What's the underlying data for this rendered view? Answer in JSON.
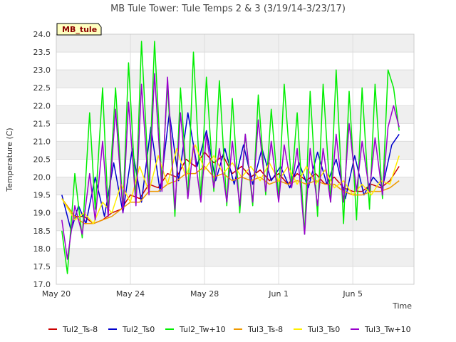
{
  "chart_data": {
    "type": "line",
    "title": "MB Tule Tower: Tule Temps 2 & 3 (3/19/14-3/23/17)",
    "xlabel": "Time",
    "ylabel": "Temperature (C)",
    "ylim": [
      17.0,
      24.0
    ],
    "yticks": [
      17.0,
      17.5,
      18.0,
      18.5,
      19.0,
      19.5,
      20.0,
      20.5,
      21.0,
      21.5,
      22.0,
      22.5,
      23.0,
      23.5,
      24.0
    ],
    "ytick_labels": [
      "17.0",
      "17.5",
      "18.0",
      "18.5",
      "19.0",
      "19.5",
      "20.0",
      "20.5",
      "21.0",
      "21.5",
      "22.0",
      "22.5",
      "23.0",
      "23.5",
      "24.0"
    ],
    "xlim": [
      0,
      19.3
    ],
    "xticks": [
      0,
      4,
      8,
      12,
      16
    ],
    "xtick_labels": [
      "May 20",
      "May 24",
      "May 28",
      "Jun 1",
      "Jun 5"
    ],
    "grid": true,
    "band_fill": "#efefef",
    "station_tag": "MB_tule",
    "legend_position": "bottom",
    "series": [
      {
        "name": "Tul2_Ts-8",
        "color": "#cc0000",
        "x": [
          0.3,
          1.0,
          1.5,
          2.0,
          2.5,
          3.0,
          3.5,
          4.0,
          4.5,
          5.0,
          5.5,
          6.0,
          6.5,
          7.0,
          7.5,
          8.0,
          8.5,
          9.0,
          9.5,
          10.0,
          10.5,
          11.0,
          11.5,
          12.0,
          12.5,
          13.0,
          13.5,
          14.0,
          14.5,
          15.0,
          15.5,
          16.0,
          16.5,
          17.0,
          17.5,
          18.0,
          18.5
        ],
        "y": [
          19.4,
          18.9,
          18.9,
          18.7,
          18.8,
          19.0,
          19.1,
          19.5,
          19.4,
          19.8,
          19.7,
          20.1,
          20.0,
          20.5,
          20.3,
          20.7,
          20.4,
          20.6,
          20.1,
          20.3,
          20.0,
          20.2,
          19.9,
          20.1,
          19.8,
          20.1,
          19.9,
          20.1,
          19.8,
          20.0,
          19.7,
          19.6,
          19.6,
          19.8,
          19.7,
          19.9,
          20.3
        ]
      },
      {
        "name": "Tul2_Ts0",
        "color": "#0000cc",
        "x": [
          0.3,
          0.8,
          1.2,
          1.6,
          2.1,
          2.6,
          3.1,
          3.6,
          4.1,
          4.6,
          5.1,
          5.6,
          6.1,
          6.6,
          7.1,
          7.6,
          8.1,
          8.6,
          9.1,
          9.6,
          10.1,
          10.6,
          11.1,
          11.6,
          12.1,
          12.6,
          13.1,
          13.6,
          14.1,
          14.6,
          15.1,
          15.6,
          16.1,
          16.6,
          17.1,
          17.6,
          18.1,
          18.5
        ],
        "y": [
          19.5,
          18.5,
          19.2,
          18.7,
          20.0,
          18.9,
          20.4,
          19.0,
          20.8,
          19.3,
          21.4,
          19.6,
          21.8,
          19.9,
          21.8,
          20.3,
          21.3,
          19.9,
          20.8,
          19.8,
          20.9,
          19.8,
          20.8,
          19.9,
          20.3,
          19.7,
          20.4,
          19.7,
          20.7,
          19.8,
          20.5,
          19.4,
          20.6,
          19.5,
          20.0,
          19.7,
          20.9,
          21.2
        ]
      },
      {
        "name": "Tul2_Tw+10",
        "color": "#00ee00",
        "x": [
          0.3,
          0.6,
          1.0,
          1.4,
          1.8,
          2.1,
          2.5,
          2.8,
          3.2,
          3.6,
          3.9,
          4.3,
          4.6,
          5.0,
          5.3,
          5.7,
          6.0,
          6.4,
          6.7,
          7.1,
          7.4,
          7.8,
          8.1,
          8.5,
          8.8,
          9.2,
          9.5,
          9.9,
          10.2,
          10.6,
          10.9,
          11.3,
          11.6,
          12.0,
          12.3,
          12.7,
          13.0,
          13.4,
          13.7,
          14.1,
          14.4,
          14.8,
          15.1,
          15.5,
          15.8,
          16.2,
          16.5,
          16.9,
          17.2,
          17.6,
          17.9,
          18.2,
          18.5
        ],
        "y": [
          18.5,
          17.3,
          20.1,
          18.3,
          21.8,
          19.1,
          22.5,
          19.0,
          22.5,
          19.1,
          23.2,
          19.4,
          23.8,
          19.7,
          23.8,
          19.8,
          22.6,
          18.9,
          22.5,
          19.4,
          23.5,
          19.4,
          22.8,
          19.6,
          22.7,
          19.2,
          22.2,
          19.0,
          21.2,
          19.2,
          22.3,
          19.5,
          21.9,
          19.4,
          22.6,
          19.8,
          21.8,
          18.4,
          22.4,
          18.9,
          22.6,
          19.3,
          23.0,
          18.7,
          22.4,
          18.8,
          22.5,
          19.1,
          22.6,
          19.4,
          23.0,
          22.5,
          21.3
        ]
      },
      {
        "name": "Tul3_Ts-8",
        "color": "#ee9900",
        "x": [
          0.3,
          1.0,
          1.5,
          2.0,
          2.5,
          3.0,
          3.5,
          4.0,
          4.5,
          5.0,
          5.5,
          6.0,
          6.5,
          7.0,
          7.5,
          8.0,
          8.5,
          9.0,
          9.5,
          10.0,
          10.5,
          11.0,
          11.5,
          12.0,
          12.5,
          13.0,
          13.5,
          14.0,
          14.5,
          15.0,
          15.5,
          16.0,
          16.5,
          17.0,
          17.5,
          18.0,
          18.5
        ],
        "y": [
          19.4,
          18.9,
          18.7,
          18.7,
          18.8,
          18.9,
          19.1,
          19.3,
          19.3,
          19.6,
          19.6,
          19.8,
          19.9,
          20.1,
          20.1,
          20.3,
          20.0,
          20.1,
          19.9,
          20.0,
          19.9,
          20.0,
          19.8,
          19.9,
          19.8,
          19.9,
          19.8,
          19.9,
          19.8,
          19.8,
          19.6,
          19.5,
          19.5,
          19.6,
          19.6,
          19.7,
          19.9
        ]
      },
      {
        "name": "Tul3_Ts0",
        "color": "#ffee00",
        "x": [
          0.3,
          1.0,
          1.5,
          2.0,
          2.5,
          3.0,
          3.5,
          4.0,
          4.5,
          5.0,
          5.5,
          6.0,
          6.5,
          7.0,
          7.5,
          8.0,
          8.5,
          9.0,
          9.5,
          10.0,
          10.5,
          11.0,
          11.5,
          12.0,
          12.5,
          13.0,
          13.5,
          14.0,
          14.5,
          15.0,
          15.5,
          16.0,
          16.5,
          17.0,
          17.5,
          18.0,
          18.5
        ],
        "y": [
          19.4,
          18.8,
          19.0,
          18.7,
          19.3,
          19.0,
          19.8,
          19.3,
          20.3,
          19.6,
          20.6,
          19.8,
          20.8,
          20.0,
          20.9,
          20.2,
          20.6,
          20.1,
          20.4,
          20.0,
          20.3,
          19.9,
          20.4,
          19.9,
          20.3,
          19.8,
          20.3,
          19.8,
          20.2,
          19.7,
          19.9,
          19.5,
          19.8,
          19.5,
          19.9,
          19.8,
          20.6
        ]
      },
      {
        "name": "Tul3_Tw+10",
        "color": "#9900cc",
        "x": [
          0.3,
          0.6,
          1.0,
          1.4,
          1.8,
          2.1,
          2.5,
          2.8,
          3.2,
          3.6,
          3.9,
          4.3,
          4.6,
          5.0,
          5.3,
          5.7,
          6.0,
          6.4,
          6.7,
          7.1,
          7.4,
          7.8,
          8.1,
          8.5,
          8.8,
          9.2,
          9.5,
          9.9,
          10.2,
          10.6,
          10.9,
          11.3,
          11.6,
          12.0,
          12.3,
          12.7,
          13.0,
          13.4,
          13.7,
          14.1,
          14.4,
          14.8,
          15.1,
          15.5,
          15.8,
          16.2,
          16.5,
          16.9,
          17.2,
          17.6,
          17.9,
          18.2,
          18.5
        ],
        "y": [
          18.8,
          17.7,
          19.2,
          18.4,
          20.1,
          18.8,
          21.0,
          18.9,
          21.9,
          19.0,
          22.1,
          19.2,
          22.6,
          19.5,
          22.9,
          19.6,
          22.8,
          19.1,
          21.8,
          19.4,
          20.9,
          19.3,
          21.2,
          19.7,
          20.8,
          19.3,
          21.0,
          19.2,
          21.2,
          19.3,
          21.6,
          19.6,
          21.0,
          19.3,
          20.9,
          19.7,
          20.8,
          18.4,
          20.8,
          19.2,
          20.8,
          19.3,
          21.2,
          19.3,
          21.5,
          19.6,
          21.0,
          19.6,
          21.1,
          19.5,
          21.4,
          22.0,
          21.4
        ]
      }
    ]
  }
}
